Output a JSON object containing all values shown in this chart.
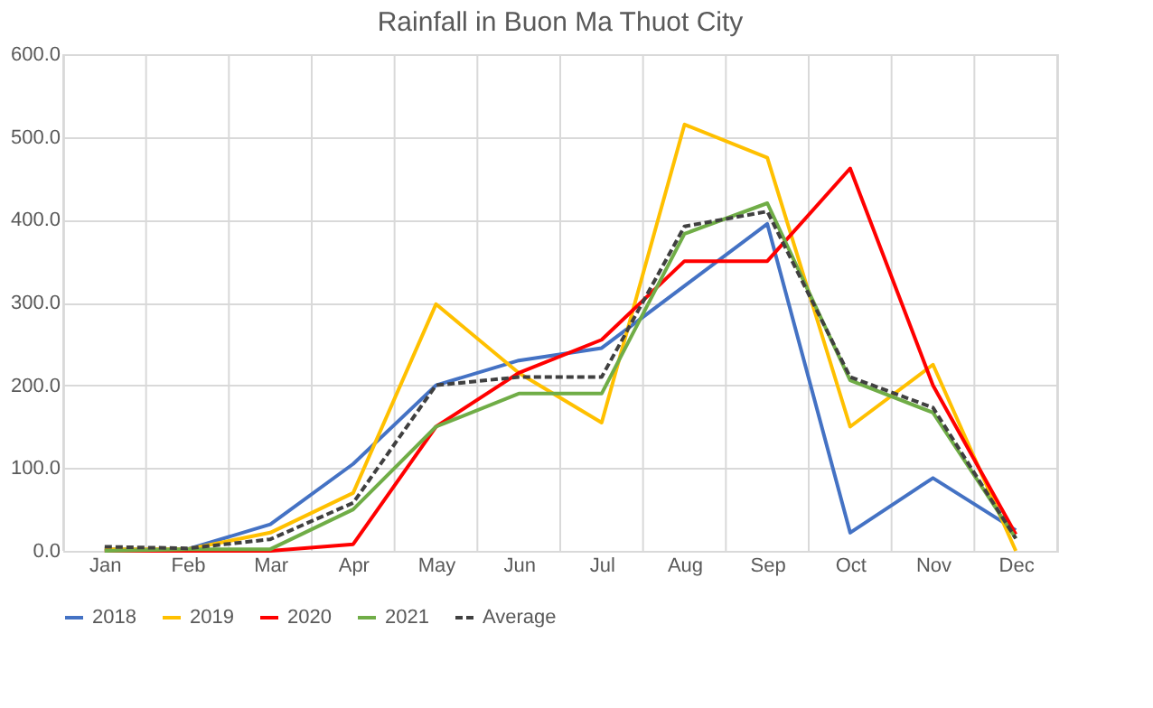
{
  "chart_data": {
    "type": "line",
    "title": "Rainfall in Buon Ma Thuot City",
    "categories": [
      "Jan",
      "Feb",
      "Mar",
      "Apr",
      "May",
      "Jun",
      "Jul",
      "Aug",
      "Sep",
      "Oct",
      "Nov",
      "Dec"
    ],
    "series": [
      {
        "name": "2018",
        "color": "#4472c4",
        "values": [
          2,
          2,
          32,
          105,
          200,
          230,
          245,
          320,
          395,
          22,
          88,
          25
        ]
      },
      {
        "name": "2019",
        "color": "#ffc000",
        "values": [
          2,
          2,
          22,
          70,
          298,
          215,
          155,
          515,
          475,
          150,
          225,
          0
        ]
      },
      {
        "name": "2020",
        "color": "#ff0000",
        "values": [
          0,
          0,
          0,
          8,
          150,
          215,
          255,
          350,
          350,
          462,
          200,
          20
        ]
      },
      {
        "name": "2021",
        "color": "#70ad47",
        "values": [
          0,
          2,
          2,
          50,
          150,
          190,
          190,
          383,
          420,
          206,
          167,
          15
        ]
      },
      {
        "name": "Average",
        "color": "#404040",
        "line_style": "dashed",
        "values": [
          5,
          3,
          14,
          58,
          200,
          210,
          210,
          392,
          410,
          210,
          173,
          15
        ]
      }
    ],
    "ylim": [
      0,
      600
    ],
    "yticks": [
      {
        "value": 0,
        "label": "0.0"
      },
      {
        "value": 100,
        "label": "100.0"
      },
      {
        "value": 200,
        "label": "200.0"
      },
      {
        "value": 300,
        "label": "300.0"
      },
      {
        "value": 400,
        "label": "400.0"
      },
      {
        "value": 500,
        "label": "500.0"
      },
      {
        "value": 600,
        "label": "600.0"
      }
    ],
    "grid": true,
    "legend": "bottom",
    "marker": "none",
    "line_style": "solid"
  }
}
